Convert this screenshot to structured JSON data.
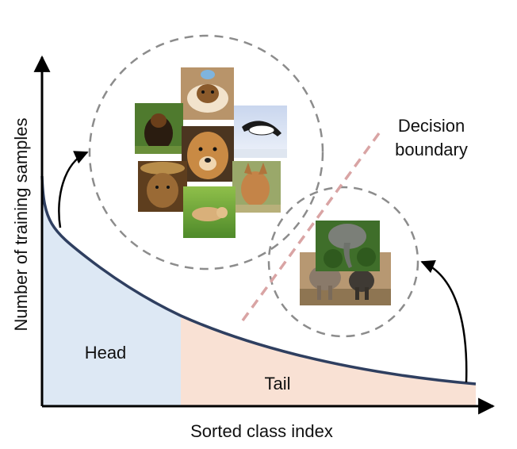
{
  "axes": {
    "x_label": "Sorted class index",
    "y_label": "Number of training samples"
  },
  "regions": {
    "head_label": "Head",
    "tail_label": "Tail"
  },
  "decision_boundary": {
    "label_line1": "Decision",
    "label_line2": "boundary"
  },
  "head_cluster": {
    "images": [
      "dog-with-hat-photo",
      "black-tan-dog-photo",
      "black-white-dog-leaping-photo",
      "golden-retriever-photo",
      "dog-in-straw-hat-photo",
      "shepherd-dog-photo",
      "puppy-on-grass-photo"
    ]
  },
  "tail_cluster": {
    "images": [
      "elephant-in-foliage-photo",
      "elephants-herd-photo"
    ]
  },
  "colors": {
    "curve": "#2f3f60",
    "head_fill": "#dde8f4",
    "tail_fill": "#f9e1d4",
    "boundary": "#d9a4a4",
    "circle": "#8c8c8c"
  }
}
